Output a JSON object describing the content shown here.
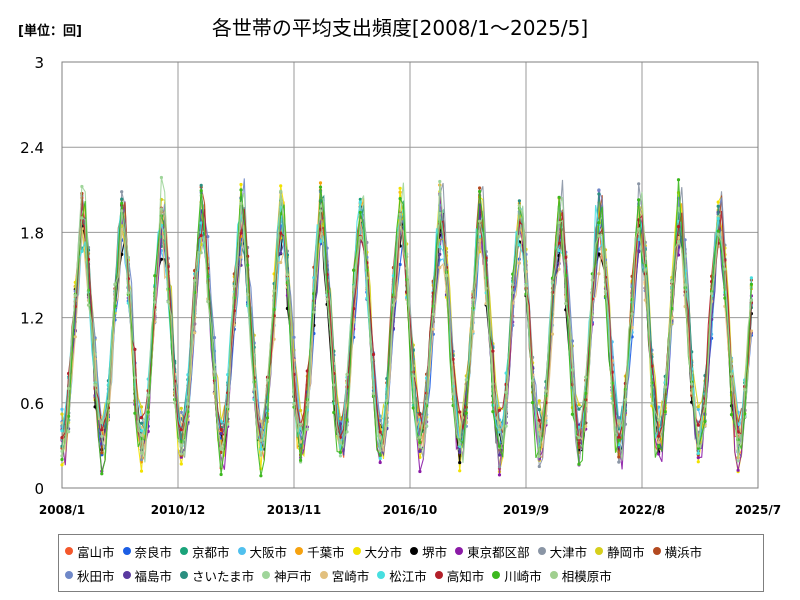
{
  "unit_label": "[単位：回]",
  "chart_data": {
    "type": "line",
    "title": "各世帯の平均支出頻度[2008/1～2025/5]",
    "xlabel": "",
    "ylabel": "",
    "ylim": [
      0,
      3
    ],
    "yticks": [
      "0",
      "0.6",
      "1.2",
      "1.8",
      "2.4",
      "3"
    ],
    "xticks": [
      "2008/1",
      "2010/12",
      "2013/11",
      "2016/10",
      "2019/9",
      "2022/8",
      "2025/7"
    ],
    "x_start": "2008/1",
    "x_end": "2025/7",
    "grid": true,
    "legend_position": "bottom",
    "series": [
      {
        "name": "富山市",
        "color": "#f4572b"
      },
      {
        "name": "奈良市",
        "color": "#1c5ee4"
      },
      {
        "name": "京都市",
        "color": "#1aa37a"
      },
      {
        "name": "大阪市",
        "color": "#50c0ee"
      },
      {
        "name": "千葉市",
        "color": "#f6a20f"
      },
      {
        "name": "大分市",
        "color": "#f2e200"
      },
      {
        "name": "堺市",
        "color": "#000000"
      },
      {
        "name": "東京都区部",
        "color": "#8b1aa6"
      },
      {
        "name": "大津市",
        "color": "#8a95a5"
      },
      {
        "name": "静岡市",
        "color": "#d6cf1c"
      },
      {
        "name": "横浜市",
        "color": "#b34a20"
      },
      {
        "name": "秋田市",
        "color": "#6f88c8"
      },
      {
        "name": "福島市",
        "color": "#5a3aa0"
      },
      {
        "name": "さいたま市",
        "color": "#2a8f80"
      },
      {
        "name": "神戸市",
        "color": "#9fd59a"
      },
      {
        "name": "宮崎市",
        "color": "#e2c07e"
      },
      {
        "name": "松江市",
        "color": "#47dfe0"
      },
      {
        "name": "高知市",
        "color": "#b3202a"
      },
      {
        "name": "川崎市",
        "color": "#3cb81e"
      },
      {
        "name": "相模原市",
        "color": "#a0cf8f"
      }
    ]
  }
}
